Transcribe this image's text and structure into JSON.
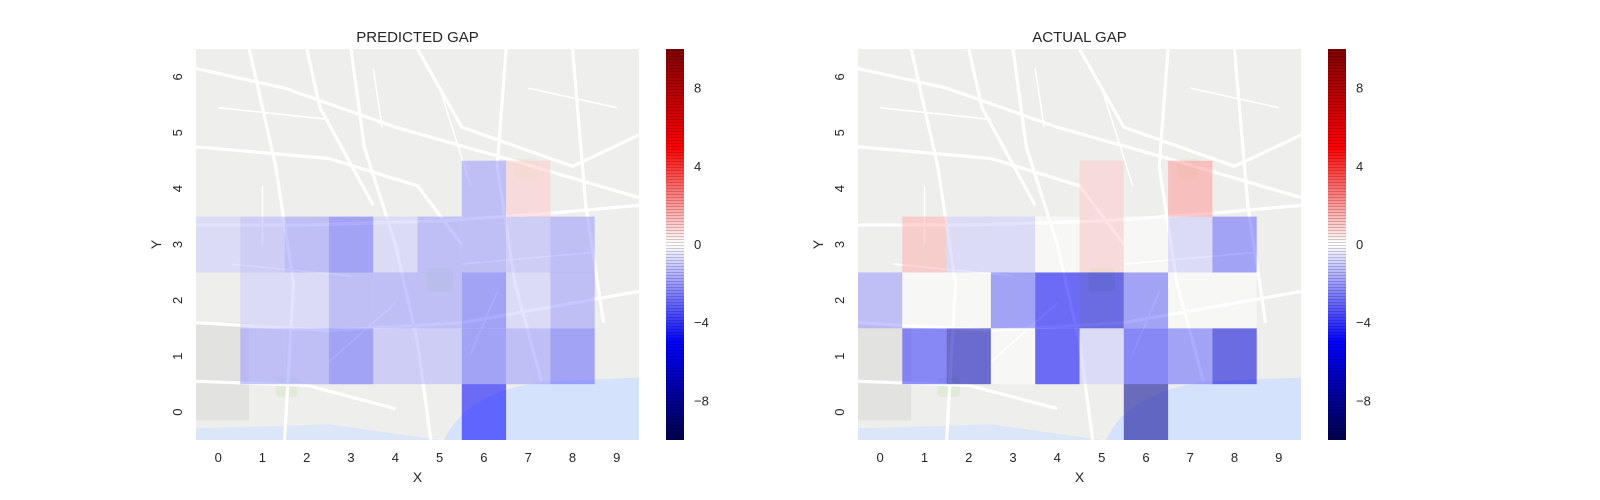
{
  "chart_data": [
    {
      "type": "heatmap",
      "title": "PREDICTED GAP",
      "xlabel": "X",
      "ylabel": "Y",
      "x_ticks": [
        "0",
        "1",
        "2",
        "3",
        "4",
        "5",
        "6",
        "7",
        "8",
        "9"
      ],
      "y_ticks": [
        "0",
        "1",
        "2",
        "3",
        "4",
        "5",
        "6"
      ],
      "x_range": [
        -0.5,
        9.5
      ],
      "y_range": [
        -0.5,
        6.5
      ],
      "background": "street map",
      "colormap": "seismic",
      "vmin": -10,
      "vmax": 10,
      "colorbar_ticks": [
        "8",
        "4",
        "0",
        "−4",
        "−8"
      ],
      "colorbar_tick_values": [
        8,
        4,
        0,
        -4,
        -8
      ],
      "cells": [
        {
          "x": 6,
          "y": 0,
          "value": -5
        },
        {
          "x": 1,
          "y": 1,
          "value": -2
        },
        {
          "x": 2,
          "y": 1,
          "value": -2
        },
        {
          "x": 3,
          "y": 1,
          "value": -3
        },
        {
          "x": 4,
          "y": 1,
          "value": -1.5
        },
        {
          "x": 5,
          "y": 1,
          "value": -1.5
        },
        {
          "x": 6,
          "y": 1,
          "value": -3
        },
        {
          "x": 7,
          "y": 1,
          "value": -2
        },
        {
          "x": 8,
          "y": 1,
          "value": -3
        },
        {
          "x": 1,
          "y": 2,
          "value": -1
        },
        {
          "x": 2,
          "y": 2,
          "value": -1
        },
        {
          "x": 3,
          "y": 2,
          "value": -2
        },
        {
          "x": 4,
          "y": 2,
          "value": -2
        },
        {
          "x": 5,
          "y": 2,
          "value": -2
        },
        {
          "x": 6,
          "y": 2,
          "value": -3
        },
        {
          "x": 7,
          "y": 2,
          "value": -1
        },
        {
          "x": 8,
          "y": 2,
          "value": -2
        },
        {
          "x": 0,
          "y": 3,
          "value": -1
        },
        {
          "x": 1,
          "y": 3,
          "value": -1.5
        },
        {
          "x": 2,
          "y": 3,
          "value": -2
        },
        {
          "x": 3,
          "y": 3,
          "value": -3
        },
        {
          "x": 4,
          "y": 3,
          "value": -1
        },
        {
          "x": 5,
          "y": 3,
          "value": -2
        },
        {
          "x": 6,
          "y": 3,
          "value": -2
        },
        {
          "x": 7,
          "y": 3,
          "value": -1.5
        },
        {
          "x": 8,
          "y": 3,
          "value": -2
        },
        {
          "x": 6,
          "y": 4,
          "value": -2
        },
        {
          "x": 7,
          "y": 4,
          "value": 1
        }
      ]
    },
    {
      "type": "heatmap",
      "title": "ACTUAL GAP",
      "xlabel": "X",
      "ylabel": "Y",
      "x_ticks": [
        "0",
        "1",
        "2",
        "3",
        "4",
        "5",
        "6",
        "7",
        "8",
        "9"
      ],
      "y_ticks": [
        "0",
        "1",
        "2",
        "3",
        "4",
        "5",
        "6"
      ],
      "x_range": [
        -0.5,
        9.5
      ],
      "y_range": [
        -0.5,
        6.5
      ],
      "background": "street map",
      "colormap": "seismic",
      "vmin": -10,
      "vmax": 10,
      "colorbar_ticks": [
        "8",
        "4",
        "0",
        "−4",
        "−8"
      ],
      "colorbar_tick_values": [
        8,
        4,
        0,
        -4,
        -8
      ],
      "cells": [
        {
          "x": 6,
          "y": 0,
          "value": -8
        },
        {
          "x": 1,
          "y": 1,
          "value": -4
        },
        {
          "x": 2,
          "y": 1,
          "value": -7
        },
        {
          "x": 3,
          "y": 1,
          "value": 0
        },
        {
          "x": 4,
          "y": 1,
          "value": -5
        },
        {
          "x": 5,
          "y": 1,
          "value": -1
        },
        {
          "x": 6,
          "y": 1,
          "value": -4
        },
        {
          "x": 7,
          "y": 1,
          "value": -3
        },
        {
          "x": 8,
          "y": 1,
          "value": -6
        },
        {
          "x": 0,
          "y": 2,
          "value": -2
        },
        {
          "x": 1,
          "y": 2,
          "value": 0
        },
        {
          "x": 2,
          "y": 2,
          "value": 0
        },
        {
          "x": 3,
          "y": 2,
          "value": -3
        },
        {
          "x": 4,
          "y": 2,
          "value": -5
        },
        {
          "x": 5,
          "y": 2,
          "value": -6
        },
        {
          "x": 6,
          "y": 2,
          "value": -3
        },
        {
          "x": 7,
          "y": 2,
          "value": 0
        },
        {
          "x": 8,
          "y": 2,
          "value": 0
        },
        {
          "x": 1,
          "y": 3,
          "value": 1.5
        },
        {
          "x": 2,
          "y": 3,
          "value": -1
        },
        {
          "x": 3,
          "y": 3,
          "value": -1
        },
        {
          "x": 4,
          "y": 3,
          "value": 0
        },
        {
          "x": 5,
          "y": 3,
          "value": 1
        },
        {
          "x": 6,
          "y": 3,
          "value": 0
        },
        {
          "x": 7,
          "y": 3,
          "value": -1
        },
        {
          "x": 8,
          "y": 3,
          "value": -3
        },
        {
          "x": 5,
          "y": 4,
          "value": 1
        },
        {
          "x": 7,
          "y": 4,
          "value": 2
        }
      ]
    }
  ]
}
